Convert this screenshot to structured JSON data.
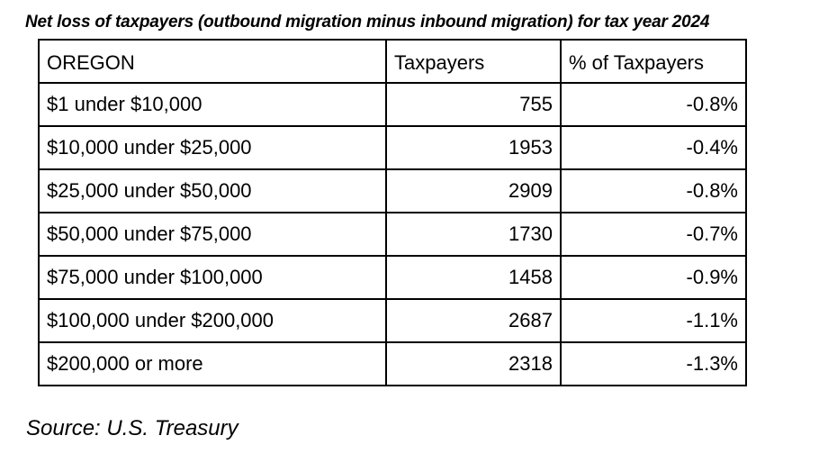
{
  "title": "Net loss of taxpayers (outbound migration minus inbound migration) for tax year 2024",
  "table": {
    "headers": [
      "OREGON",
      "Taxpayers",
      "% of Taxpayers"
    ],
    "rows": [
      {
        "bracket": "$1 under $10,000",
        "taxpayers": "755",
        "percent": "-0.8%"
      },
      {
        "bracket": "$10,000 under $25,000",
        "taxpayers": "1953",
        "percent": "-0.4%"
      },
      {
        "bracket": "$25,000 under $50,000",
        "taxpayers": "2909",
        "percent": "-0.8%"
      },
      {
        "bracket": "$50,000 under $75,000",
        "taxpayers": "1730",
        "percent": "-0.7%"
      },
      {
        "bracket": "$75,000 under $100,000",
        "taxpayers": "1458",
        "percent": "-0.9%"
      },
      {
        "bracket": "$100,000 under $200,000",
        "taxpayers": "2687",
        "percent": "-1.1%"
      },
      {
        "bracket": "$200,000 or more",
        "taxpayers": "2318",
        "percent": "-1.3%"
      }
    ]
  },
  "source": "Source: U.S. Treasury"
}
